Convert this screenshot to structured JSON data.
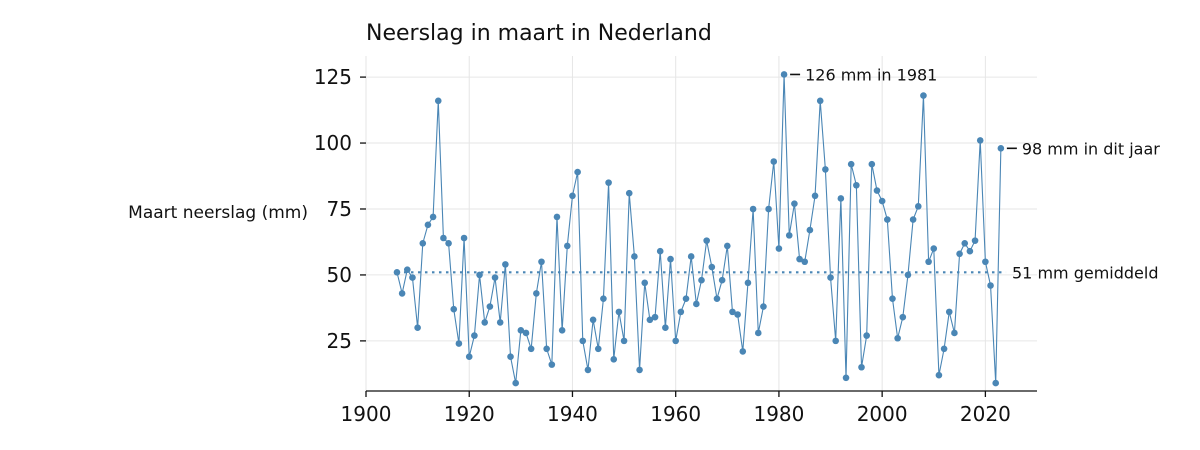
{
  "chart_data": {
    "type": "line",
    "title": "Neerslag in maart in Nederland",
    "xlabel": "",
    "ylabel": "Maart neerslag (mm)",
    "xlim": [
      1900,
      2030
    ],
    "ylim": [
      6,
      133
    ],
    "xticks": [
      1900,
      1920,
      1940,
      1960,
      1980,
      2000,
      2020
    ],
    "yticks": [
      25,
      50,
      75,
      100,
      125
    ],
    "grid": true,
    "color": "#4a86b5",
    "average": {
      "value": 51,
      "x_start": 1906,
      "x_end": 2024,
      "label": "51 mm gemiddeld"
    },
    "annotations": [
      {
        "year": 1981,
        "value": 126,
        "label": "126 mm in 1981"
      },
      {
        "year": 2023,
        "value": 98,
        "label": "98 mm in dit jaar"
      }
    ],
    "series": [
      {
        "x": [
          1906,
          1907,
          1908,
          1909,
          1910,
          1911,
          1912,
          1913,
          1914,
          1915,
          1916,
          1917,
          1918,
          1919,
          1920,
          1921,
          1922,
          1923,
          1924,
          1925,
          1926,
          1927,
          1928,
          1929,
          1930,
          1931,
          1932,
          1933,
          1934,
          1935,
          1936,
          1937,
          1938,
          1939,
          1940,
          1941,
          1942,
          1943,
          1944,
          1945,
          1946,
          1947,
          1948,
          1949,
          1950,
          1951,
          1952,
          1953,
          1954,
          1955,
          1956,
          1957,
          1958,
          1959,
          1960,
          1961,
          1962,
          1963,
          1964,
          1965,
          1966,
          1967,
          1968,
          1969,
          1970,
          1971,
          1972,
          1973,
          1974,
          1975,
          1976,
          1977,
          1978,
          1979,
          1980,
          1981,
          1982,
          1983,
          1984,
          1985,
          1986,
          1987,
          1988,
          1989,
          1990,
          1991,
          1992,
          1993,
          1994,
          1995,
          1996,
          1997,
          1998,
          1999,
          2000,
          2001,
          2002,
          2003,
          2004,
          2005,
          2006,
          2007,
          2008,
          2009,
          2010,
          2011,
          2012,
          2013,
          2014,
          2015,
          2016,
          2017,
          2018,
          2019,
          2020,
          2021,
          2022,
          2023
        ],
        "values": [
          51,
          43,
          52,
          49,
          30,
          62,
          69,
          72,
          116,
          64,
          62,
          37,
          24,
          64,
          19,
          27,
          50,
          32,
          38,
          49,
          32,
          54,
          19,
          9,
          29,
          28,
          22,
          43,
          55,
          22,
          16,
          72,
          29,
          61,
          80,
          89,
          25,
          14,
          33,
          22,
          41,
          85,
          18,
          36,
          25,
          81,
          57,
          14,
          47,
          33,
          34,
          59,
          30,
          56,
          25,
          36,
          41,
          57,
          39,
          48,
          63,
          53,
          41,
          48,
          61,
          36,
          35,
          21,
          47,
          75,
          28,
          38,
          75,
          93,
          60,
          126,
          65,
          77,
          56,
          55,
          67,
          80,
          116,
          90,
          49,
          25,
          79,
          11,
          92,
          84,
          15,
          27,
          92,
          82,
          78,
          71,
          41,
          26,
          34,
          50,
          71,
          76,
          118,
          55,
          60,
          12,
          22,
          36,
          28,
          58,
          62,
          59,
          63,
          101,
          55,
          46,
          9,
          98
        ]
      }
    ]
  }
}
